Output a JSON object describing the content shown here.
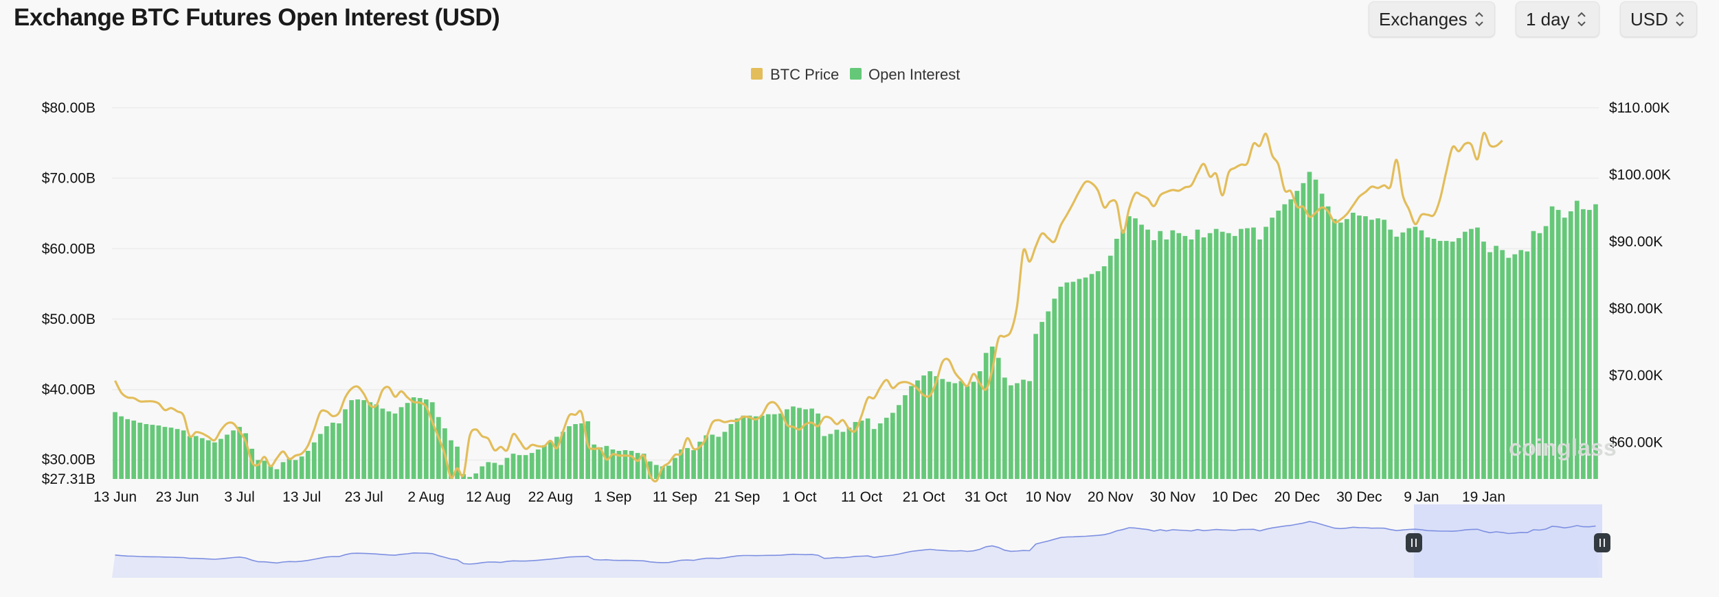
{
  "title": "Exchange BTC Futures Open Interest (USD)",
  "controls": {
    "exchanges": "Exchanges",
    "interval": "1 day",
    "currency": "USD"
  },
  "colors": {
    "open_interest": "#65c878",
    "btc_price": "#e3bd5a",
    "navigator_line": "#7d8fe2",
    "navigator_fill": "#e3e7f7",
    "navigator_selection": "#d4daf8",
    "grid": "#ececec"
  },
  "watermark": "coinglass",
  "chart_data": {
    "type": "bar",
    "legend": [
      "BTC Price",
      "Open Interest"
    ],
    "legend_position": "top-center",
    "grid": true,
    "x_tick_labels": [
      "13 Jun",
      "23 Jun",
      "3 Jul",
      "13 Jul",
      "23 Jul",
      "2 Aug",
      "12 Aug",
      "22 Aug",
      "1 Sep",
      "11 Sep",
      "21 Sep",
      "1 Oct",
      "11 Oct",
      "21 Oct",
      "31 Oct",
      "10 Nov",
      "20 Nov",
      "30 Nov",
      "10 Dec",
      "20 Dec",
      "30 Dec",
      "9 Jan",
      "19 Jan"
    ],
    "y_left": {
      "tick_labels": [
        "$27.31B",
        "$30.00B",
        "$40.00B",
        "$50.00B",
        "$60.00B",
        "$70.00B",
        "$80.00B"
      ],
      "min": 27.31,
      "max": 80
    },
    "y_right": {
      "tick_labels": [
        "$60.00K",
        "$70.00K",
        "$80.00K",
        "$90.00K",
        "$100.00K",
        "$110.00K"
      ],
      "min": 54.5,
      "max": 110
    },
    "series": [
      {
        "name": "Open Interest",
        "type": "bar",
        "unit": "B USD",
        "start_date": "13 Jun",
        "values": [
          36.8,
          36.2,
          35.8,
          35.6,
          35.3,
          35.1,
          35.0,
          34.9,
          34.7,
          34.6,
          34.4,
          34.2,
          33.4,
          33.4,
          33.1,
          32.8,
          32.5,
          33.0,
          33.6,
          34.2,
          34.7,
          33.8,
          31.6,
          30.0,
          29.9,
          29.3,
          28.7,
          29.7,
          30.2,
          30.0,
          30.5,
          31.3,
          32.5,
          33.7,
          34.8,
          35.3,
          35.2,
          37.2,
          38.5,
          38.6,
          38.5,
          38.2,
          37.9,
          37.3,
          36.9,
          36.6,
          37.5,
          38.1,
          38.9,
          38.8,
          38.6,
          38.2,
          36.1,
          34.5,
          32.8,
          31.9,
          28.0,
          27.6,
          28.1,
          29.1,
          29.7,
          29.6,
          29.3,
          30.3,
          30.9,
          30.7,
          30.7,
          31.0,
          31.5,
          32.1,
          32.6,
          33.3,
          34.0,
          34.8,
          35.1,
          35.2,
          35.5,
          32.2,
          31.8,
          32.0,
          31.5,
          31.3,
          31.4,
          31.3,
          31.0,
          30.9,
          29.8,
          29.3,
          29.1,
          29.2,
          30.3,
          31.5,
          31.7,
          31.4,
          32.6,
          33.5,
          33.6,
          33.3,
          34.0,
          35.1,
          35.9,
          36.3,
          36.3,
          36.2,
          36.3,
          36.5,
          36.5,
          36.6,
          37.2,
          37.6,
          37.4,
          37.2,
          37.3,
          36.6,
          33.4,
          33.7,
          34.3,
          34.0,
          34.6,
          35.4,
          35.6,
          35.9,
          34.4,
          35.2,
          36.0,
          36.7,
          37.8,
          39.2,
          40.5,
          41.3,
          42.0,
          42.6,
          41.9,
          41.5,
          41.1,
          40.9,
          41.2,
          40.5,
          41.1,
          42.6,
          45.2,
          46.1,
          44.5,
          41.7,
          40.6,
          40.9,
          41.4,
          41.2,
          47.9,
          49.6,
          51.1,
          52.9,
          54.6,
          55.2,
          55.3,
          55.7,
          55.9,
          56.4,
          56.8,
          57.5,
          59.0,
          61.4,
          62.7,
          64.6,
          64.3,
          63.4,
          62.7,
          61.2,
          62.5,
          61.3,
          62.6,
          62.2,
          61.8,
          61.3,
          62.7,
          61.6,
          62.2,
          62.8,
          62.4,
          62.2,
          61.8,
          62.8,
          62.9,
          63.0,
          61.3,
          63.1,
          64.4,
          65.4,
          66.3,
          67.0,
          68.2,
          69.3,
          70.9,
          69.8,
          67.8,
          66.0,
          64.2,
          63.7,
          64.2,
          65.1,
          64.7,
          64.6,
          64.1,
          64.3,
          64.1,
          62.7,
          61.7,
          62.3,
          62.9,
          63.1,
          62.6,
          61.6,
          61.4,
          61.1,
          61.1,
          61.0,
          61.5,
          62.4,
          62.8,
          63.0,
          61.0,
          59.5,
          60.4,
          59.8,
          58.7,
          59.2,
          59.8,
          59.6,
          62.5,
          62.2,
          63.2,
          66.0,
          65.5,
          64.4,
          65.3,
          66.8,
          65.6,
          65.5,
          66.3
        ]
      },
      {
        "name": "BTC Price",
        "type": "line",
        "unit": "K USD",
        "values": [
          69.2,
          67.4,
          66.7,
          66.6,
          66.1,
          66.1,
          66.1,
          65.8,
          64.8,
          65.1,
          64.6,
          64.0,
          60.9,
          61.5,
          61.3,
          60.8,
          60.3,
          61.8,
          62.8,
          62.8,
          61.6,
          60.1,
          57.0,
          56.6,
          57.8,
          56.4,
          57.6,
          58.6,
          57.5,
          58.0,
          58.3,
          59.5,
          61.9,
          64.5,
          64.6,
          63.9,
          64.4,
          66.7,
          68.0,
          68.3,
          67.2,
          65.5,
          65.5,
          67.8,
          68.2,
          66.8,
          67.6,
          66.7,
          66.0,
          65.9,
          65.3,
          63.0,
          60.7,
          58.2,
          54.7,
          56.1,
          55.1,
          60.9,
          61.9,
          60.9,
          60.5,
          58.8,
          59.3,
          58.8,
          61.2,
          60.2,
          59.0,
          59.6,
          59.4,
          59.4,
          60.2,
          59.1,
          61.6,
          64.0,
          64.1,
          64.4,
          59.6,
          59.0,
          59.0,
          57.4,
          58.2,
          58.0,
          58.0,
          57.9,
          57.2,
          58.0,
          55.0,
          54.2,
          56.2,
          56.9,
          58.1,
          58.3,
          60.6,
          59.0,
          59.3,
          60.6,
          62.9,
          63.3,
          63.0,
          63.2,
          63.2,
          63.8,
          63.7,
          63.4,
          64.1,
          65.7,
          65.9,
          64.7,
          62.6,
          62.3,
          61.9,
          62.7,
          62.9,
          62.4,
          63.7,
          63.6,
          62.7,
          63.3,
          62.0,
          61.7,
          64.0,
          66.6,
          66.6,
          68.2,
          69.3,
          68.1,
          68.8,
          69.0,
          68.7,
          68.0,
          67.0,
          67.0,
          69.0,
          72.0,
          72.3,
          70.4,
          69.3,
          68.4,
          70.2,
          68.8,
          67.9,
          70.8,
          75.5,
          75.8,
          76.6,
          80.4,
          88.6,
          87.0,
          89.3,
          91.2,
          90.5,
          90.0,
          92.4,
          94.0,
          95.7,
          97.5,
          98.9,
          98.7,
          97.6,
          95.1,
          96.0,
          95.7,
          91.3,
          94.9,
          97.2,
          96.9,
          96.4,
          95.3,
          96.9,
          97.4,
          97.7,
          97.6,
          98.1,
          98.4,
          100.2,
          101.6,
          99.7,
          100.1,
          96.9,
          100.3,
          101.0,
          101.5,
          101.7,
          104.6,
          104.3,
          106.1,
          102.9,
          101.5,
          97.7,
          97.5,
          95.2,
          95.2,
          93.7,
          94.3,
          95.1,
          94.5,
          92.9,
          93.3,
          94.1,
          95.4,
          96.7,
          97.4,
          98.2,
          98.0,
          98.4,
          98.2,
          102.2,
          96.9,
          94.8,
          92.6,
          94.0,
          94.0,
          94.0,
          96.4,
          100.5,
          104.1,
          103.5,
          104.6,
          104.5,
          102.3,
          106.2,
          104.4,
          104.3,
          105.1
        ]
      }
    ]
  }
}
